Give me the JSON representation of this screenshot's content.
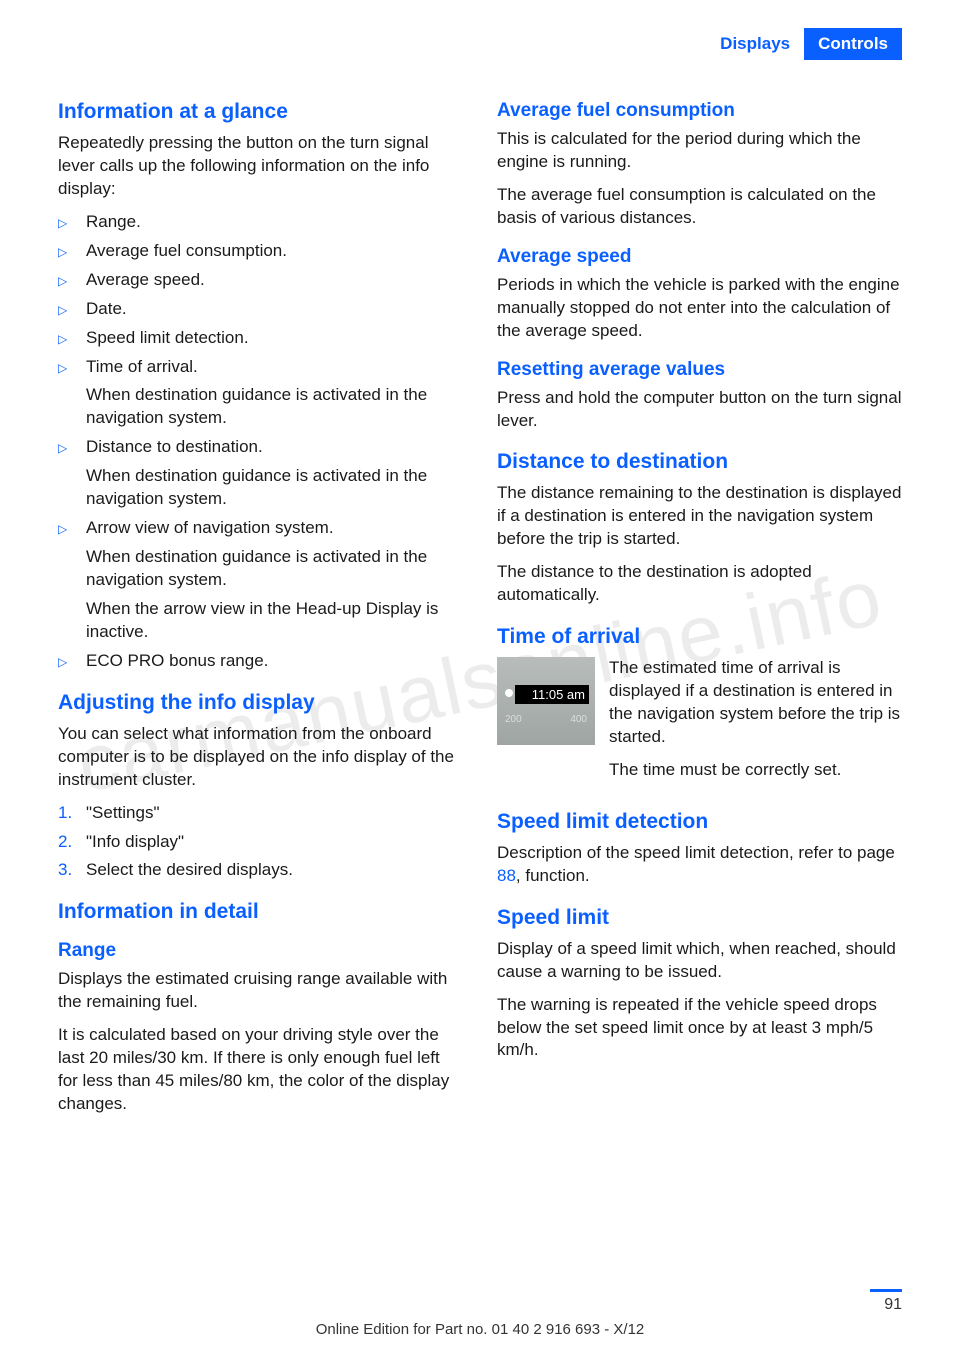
{
  "header": {
    "displays": "Displays",
    "controls": "Controls"
  },
  "left": {
    "h_info_glance": "Information at a glance",
    "p_info_glance": "Repeatedly pressing the button on the turn signal lever calls up the following information on the info display:",
    "bullets": [
      {
        "text": "Range."
      },
      {
        "text": "Average fuel consumption."
      },
      {
        "text": "Average speed."
      },
      {
        "text": "Date."
      },
      {
        "text": "Speed limit detection."
      },
      {
        "text": "Time of arrival.",
        "sub": "When destination guidance is activated in the navigation system."
      },
      {
        "text": "Distance to destination.",
        "sub": "When destination guidance is activated in the navigation system."
      },
      {
        "text": "Arrow view of navigation system.",
        "sub": "When destination guidance is activated in the navigation system.",
        "sub2": "When the arrow view in the Head-up Display is inactive."
      },
      {
        "text": "ECO PRO bonus range."
      }
    ],
    "h_adjust": "Adjusting the info display",
    "p_adjust": "You can select what information from the onboard computer is to be displayed on the info display of the instrument cluster.",
    "steps": [
      "\"Settings\"",
      "\"Info display\"",
      "Select the desired displays."
    ],
    "h_detail": "Information in detail",
    "h_range": "Range",
    "p_range1": "Displays the estimated cruising range available with the remaining fuel.",
    "p_range2": "It is calculated based on your driving style over the last 20 miles/30 km. If there is only enough fuel left for less than 45 miles/80 km, the color of the display changes."
  },
  "right": {
    "h_avg_fuel": "Average fuel consumption",
    "p_avg_fuel1": "This is calculated for the period during which the engine is running.",
    "p_avg_fuel2": "The average fuel consumption is calculated on the basis of various distances.",
    "h_avg_speed": "Average speed",
    "p_avg_speed": "Periods in which the vehicle is parked with the engine manually stopped do not enter into the calculation of the average speed.",
    "h_reset": "Resetting average values",
    "p_reset": "Press and hold the computer button on the turn signal lever.",
    "h_dist": "Distance to destination",
    "p_dist1": "The distance remaining to the destination is displayed if a destination is entered in the navigation system before the trip is started.",
    "p_dist2": "The distance to the destination is adopted automatically.",
    "h_arrival": "Time of arrival",
    "arrival_time": "11:05 am",
    "arrival_scale_l": "200",
    "arrival_scale_r": "400",
    "p_arrival1": "The estimated time of arrival is displayed if a destination is entered in the navigation system before the trip is started.",
    "p_arrival2": "The time must be correctly set.",
    "h_sld": "Speed limit detection",
    "p_sld_pre": "Description of the speed limit detection, refer to page ",
    "p_sld_link": "88",
    "p_sld_post": ", function.",
    "h_sl": "Speed limit",
    "p_sl1": "Display of a speed limit which, when reached, should cause a warning to be issued.",
    "p_sl2": "The warning is repeated if the vehicle speed drops below the set speed limit once by at least 3 mph/5 km/h."
  },
  "footer": "Online Edition for Part no. 01 40 2 916 693 - X/12",
  "page": "91",
  "watermark": "carmanualsonline.info"
}
